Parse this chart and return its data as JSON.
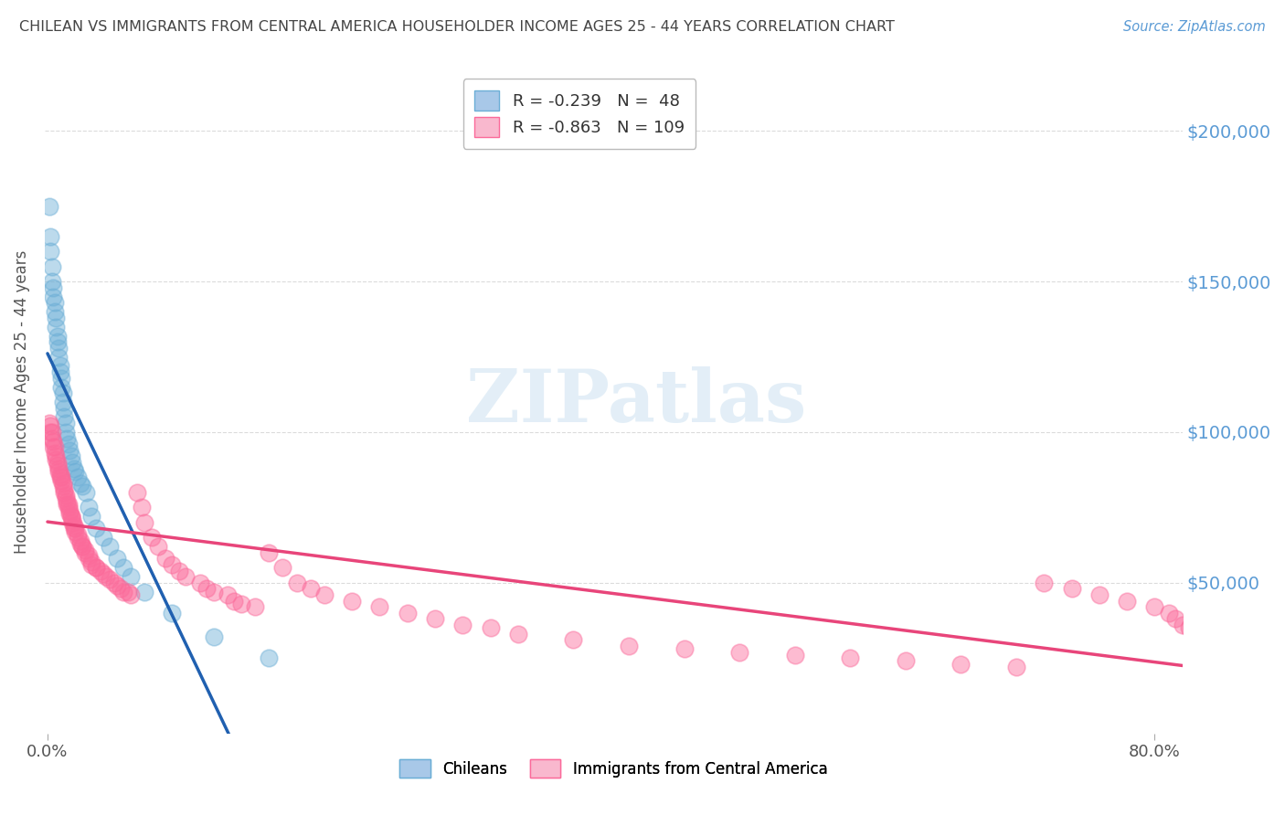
{
  "title": "CHILEAN VS IMMIGRANTS FROM CENTRAL AMERICA HOUSEHOLDER INCOME AGES 25 - 44 YEARS CORRELATION CHART",
  "source": "Source: ZipAtlas.com",
  "ylabel": "Householder Income Ages 25 - 44 years",
  "ytick_labels": [
    "$50,000",
    "$100,000",
    "$150,000",
    "$200,000"
  ],
  "ytick_values": [
    50000,
    100000,
    150000,
    200000
  ],
  "ylim": [
    0,
    220000
  ],
  "xlim": [
    -0.002,
    0.82
  ],
  "background_color": "#ffffff",
  "grid_color": "#cccccc",
  "title_color": "#444444",
  "right_tick_color": "#5b9bd5",
  "watermark_color": "#c8dff0",
  "chileans_color": "#6baed6",
  "chileans_edge_color": "#4a90c4",
  "ca_color": "#fb6a9a",
  "ca_edge_color": "#e8457a",
  "trendline_blue": "#2060b0",
  "trendline_pink": "#e8457a",
  "trendline_dash": "#a8c8e8",
  "chileans_x": [
    0.001,
    0.002,
    0.002,
    0.003,
    0.003,
    0.004,
    0.004,
    0.005,
    0.005,
    0.006,
    0.006,
    0.007,
    0.007,
    0.008,
    0.008,
    0.009,
    0.009,
    0.01,
    0.01,
    0.011,
    0.011,
    0.012,
    0.012,
    0.013,
    0.013,
    0.014,
    0.015,
    0.016,
    0.017,
    0.018,
    0.019,
    0.02,
    0.022,
    0.024,
    0.025,
    0.028,
    0.03,
    0.032,
    0.035,
    0.04,
    0.045,
    0.05,
    0.055,
    0.06,
    0.07,
    0.09,
    0.12,
    0.16
  ],
  "chileans_y": [
    175000,
    165000,
    160000,
    155000,
    150000,
    148000,
    145000,
    143000,
    140000,
    138000,
    135000,
    132000,
    130000,
    128000,
    125000,
    122000,
    120000,
    118000,
    115000,
    113000,
    110000,
    108000,
    105000,
    103000,
    100000,
    98000,
    96000,
    94000,
    92000,
    90000,
    88000,
    87000,
    85000,
    83000,
    82000,
    80000,
    75000,
    72000,
    68000,
    65000,
    62000,
    58000,
    55000,
    52000,
    47000,
    40000,
    32000,
    25000
  ],
  "ca_x": [
    0.001,
    0.002,
    0.002,
    0.003,
    0.003,
    0.004,
    0.004,
    0.005,
    0.005,
    0.006,
    0.006,
    0.007,
    0.007,
    0.008,
    0.008,
    0.009,
    0.009,
    0.01,
    0.01,
    0.011,
    0.011,
    0.012,
    0.012,
    0.013,
    0.013,
    0.014,
    0.014,
    0.015,
    0.015,
    0.016,
    0.016,
    0.017,
    0.017,
    0.018,
    0.018,
    0.019,
    0.019,
    0.02,
    0.02,
    0.022,
    0.022,
    0.024,
    0.024,
    0.025,
    0.025,
    0.027,
    0.027,
    0.03,
    0.03,
    0.032,
    0.032,
    0.035,
    0.035,
    0.038,
    0.04,
    0.042,
    0.045,
    0.048,
    0.05,
    0.053,
    0.055,
    0.058,
    0.06,
    0.065,
    0.068,
    0.07,
    0.075,
    0.08,
    0.085,
    0.09,
    0.095,
    0.1,
    0.11,
    0.115,
    0.12,
    0.13,
    0.135,
    0.14,
    0.15,
    0.16,
    0.17,
    0.18,
    0.19,
    0.2,
    0.22,
    0.24,
    0.26,
    0.28,
    0.3,
    0.32,
    0.34,
    0.38,
    0.42,
    0.46,
    0.5,
    0.54,
    0.58,
    0.62,
    0.66,
    0.7,
    0.72,
    0.74,
    0.76,
    0.78,
    0.8,
    0.81,
    0.815,
    0.82,
    0.825
  ],
  "ca_y": [
    103000,
    102000,
    100000,
    100000,
    98000,
    97000,
    95000,
    95000,
    93000,
    92000,
    91000,
    90000,
    89000,
    88000,
    87000,
    86000,
    85000,
    85000,
    84000,
    83000,
    82000,
    81000,
    80000,
    79000,
    78000,
    77000,
    76000,
    76000,
    75000,
    74000,
    73000,
    72000,
    72000,
    71000,
    70000,
    69000,
    68000,
    68000,
    67000,
    66000,
    65000,
    64000,
    63000,
    62000,
    62000,
    61000,
    60000,
    59000,
    58000,
    57000,
    56000,
    55000,
    55000,
    54000,
    53000,
    52000,
    51000,
    50000,
    49000,
    48000,
    47000,
    47000,
    46000,
    80000,
    75000,
    70000,
    65000,
    62000,
    58000,
    56000,
    54000,
    52000,
    50000,
    48000,
    47000,
    46000,
    44000,
    43000,
    42000,
    60000,
    55000,
    50000,
    48000,
    46000,
    44000,
    42000,
    40000,
    38000,
    36000,
    35000,
    33000,
    31000,
    29000,
    28000,
    27000,
    26000,
    25000,
    24000,
    23000,
    22000,
    50000,
    48000,
    46000,
    44000,
    42000,
    40000,
    38000,
    36000,
    35000
  ]
}
